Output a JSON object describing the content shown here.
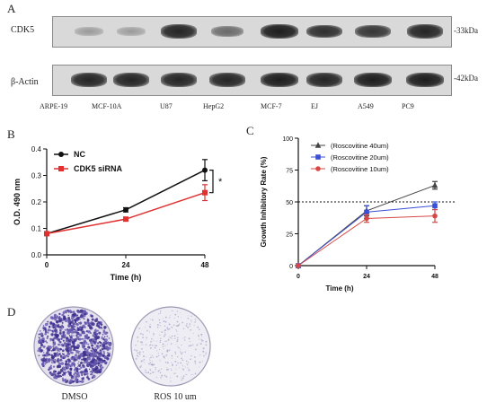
{
  "panel_a": {
    "letter": "A",
    "rows": [
      {
        "label": "CDK5",
        "kda": "-33kDa",
        "bands": [
          0.22,
          0.22,
          0.9,
          0.5,
          0.95,
          0.85,
          0.8,
          0.9
        ]
      },
      {
        "label": "β-Actin",
        "kda": "-42kDa",
        "bands": [
          0.9,
          0.9,
          0.9,
          0.9,
          0.95,
          0.9,
          0.95,
          0.95
        ]
      }
    ],
    "lanes": [
      "ARPE-19",
      "MCF-10A",
      "U87",
      "HepG2",
      "MCF-7",
      "EJ",
      "A549",
      "PC9"
    ]
  },
  "panel_b": {
    "letter": "B"
  },
  "panel_c": {
    "letter": "C"
  },
  "panel_d": {
    "letter": "D",
    "dishes": [
      {
        "label": "DMSO",
        "density": 0.9
      },
      {
        "label": "ROS 10 um",
        "density": 0.2
      }
    ]
  },
  "chart_data": [
    {
      "type": "line",
      "title": "",
      "xlabel": "Time (h)",
      "ylabel": "O.D. 490 nm",
      "x": [
        0,
        24,
        48
      ],
      "xticks": [
        "0",
        "24",
        "48"
      ],
      "yticks": [
        "0.0",
        "0.1",
        "0.2",
        "0.3",
        "0.4"
      ],
      "xlim": [
        0,
        48
      ],
      "ylim": [
        0,
        0.4
      ],
      "legend_position": "top-left",
      "significance": "*",
      "series": [
        {
          "name": "NC",
          "color": "#111111",
          "marker": "circle",
          "values": [
            0.08,
            0.17,
            0.32
          ],
          "errors": [
            0,
            0.008,
            0.04
          ]
        },
        {
          "name": "CDK5 siRNA",
          "color": "#e03030",
          "marker": "square",
          "values": [
            0.08,
            0.135,
            0.235
          ],
          "errors": [
            0,
            0.005,
            0.03
          ]
        }
      ]
    },
    {
      "type": "line",
      "title": "",
      "xlabel": "Time  (h)",
      "ylabel": "Growth Inhibitory Rate (%)",
      "x": [
        0,
        24,
        48
      ],
      "xticks": [
        "0",
        "24",
        "48"
      ],
      "yticks": [
        "0",
        "25",
        "50",
        "75",
        "100"
      ],
      "xlim": [
        0,
        48
      ],
      "ylim": [
        0,
        100
      ],
      "reference_line": 50,
      "legend_position": "top-left",
      "series": [
        {
          "name": "(Roscovitine 40um)",
          "color": "#444444",
          "marker": "triangle",
          "values": [
            0,
            43,
            63
          ],
          "errors": [
            0,
            4,
            3
          ]
        },
        {
          "name": "(Roscovitine 20um)",
          "color": "#3b4fd6",
          "marker": "square",
          "values": [
            0,
            42,
            47
          ],
          "errors": [
            0,
            5,
            3
          ]
        },
        {
          "name": "(Roscovitine 10um)",
          "color": "#d64848",
          "marker": "circle",
          "values": [
            0,
            37,
            39
          ],
          "errors": [
            0,
            3,
            5
          ]
        }
      ]
    }
  ]
}
